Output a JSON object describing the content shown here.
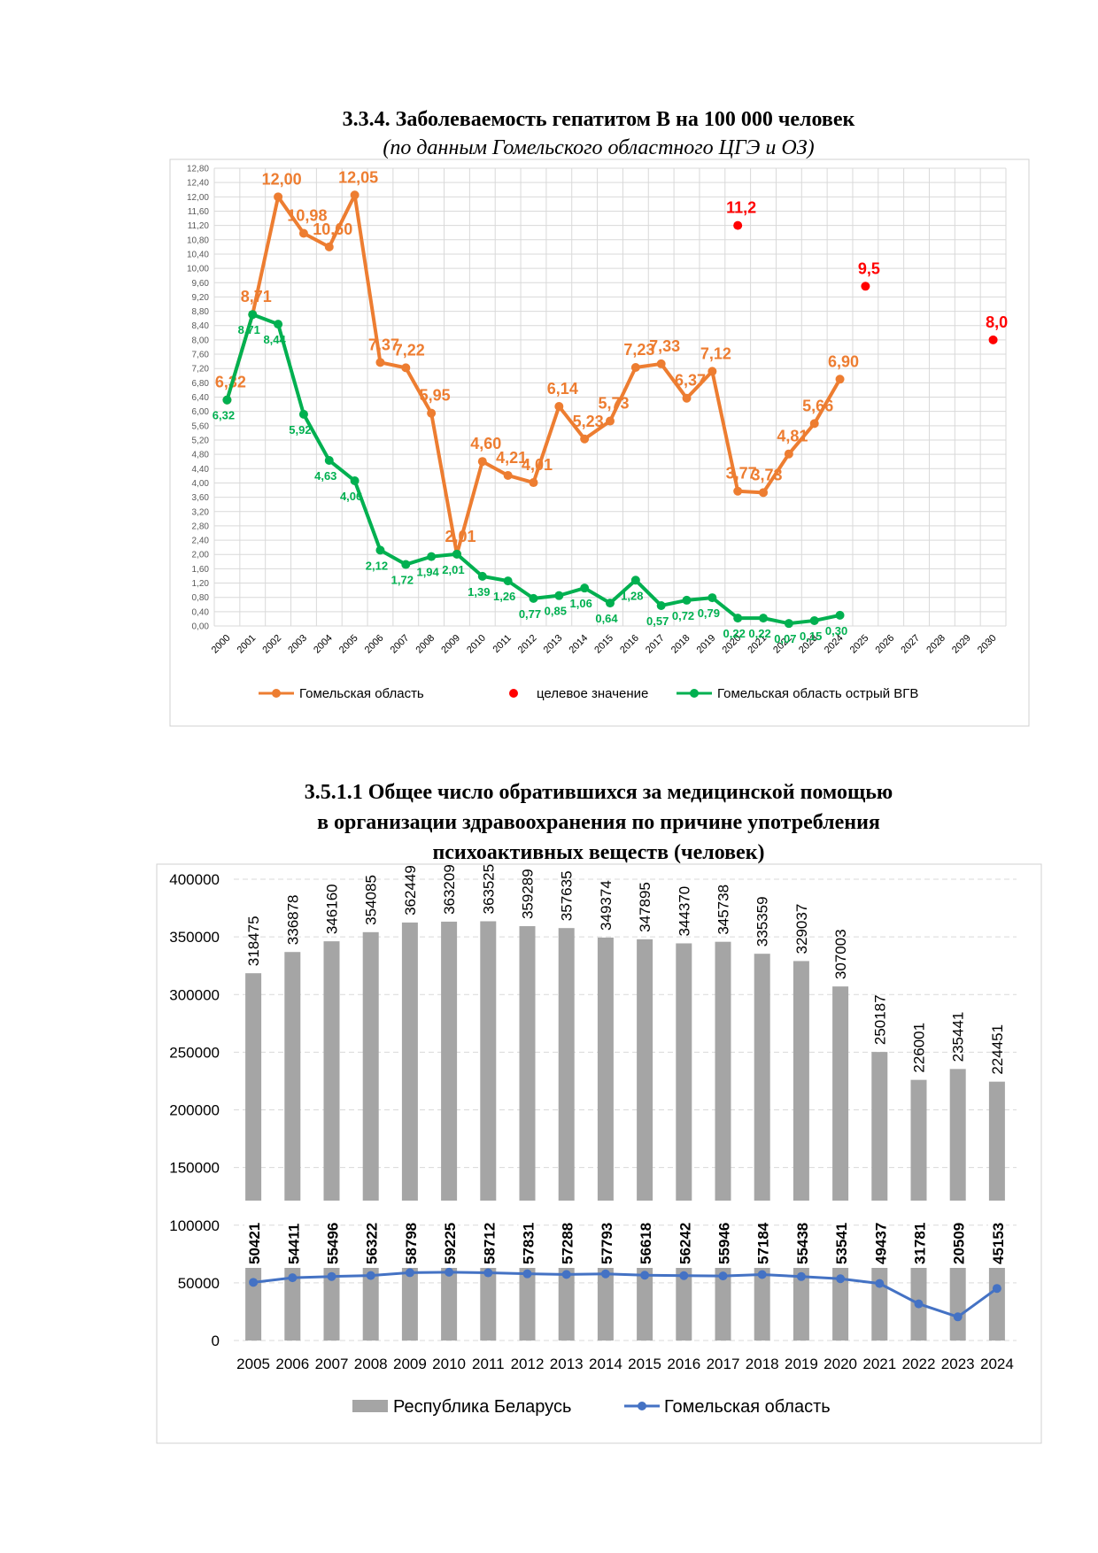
{
  "chart_data": [
    {
      "type": "line",
      "title": "3.3.4. Заболеваемость гепатитом В на 100 000 человек",
      "subtitle": "(по данным Гомельского областного ЦГЭ и ОЗ)",
      "categories": [
        "2000",
        "2001",
        "2002",
        "2003",
        "2004",
        "2005",
        "2006",
        "2007",
        "2008",
        "2009",
        "2010",
        "2011",
        "2012",
        "2013",
        "2014",
        "2015",
        "2016",
        "2017",
        "2018",
        "2019",
        "2020",
        "2021",
        "2022",
        "2023",
        "2024",
        "2025",
        "2026",
        "2027",
        "2028",
        "2029",
        "2030"
      ],
      "ylim": [
        0,
        12.8
      ],
      "yticks": [
        {
          "value": 0,
          "label": "0,00"
        },
        {
          "value": 0.4,
          "label": "0,40"
        },
        {
          "value": 0.8,
          "label": "0,80"
        },
        {
          "value": 1.2,
          "label": "1,20"
        },
        {
          "value": 1.6,
          "label": "1,60"
        },
        {
          "value": 2,
          "label": "2,00"
        },
        {
          "value": 2.4,
          "label": "2,40"
        },
        {
          "value": 2.8,
          "label": "2,80"
        },
        {
          "value": 3.2,
          "label": "3,20"
        },
        {
          "value": 3.6,
          "label": "3,60"
        },
        {
          "value": 4,
          "label": "4,00"
        },
        {
          "value": 4.4,
          "label": "4,40"
        },
        {
          "value": 4.8,
          "label": "4,80"
        },
        {
          "value": 5.2,
          "label": "5,20"
        },
        {
          "value": 5.6,
          "label": "5,60"
        },
        {
          "value": 6,
          "label": "6,00"
        },
        {
          "value": 6.4,
          "label": "6,40"
        },
        {
          "value": 6.8,
          "label": "6,80"
        },
        {
          "value": 7.2,
          "label": "7,20"
        },
        {
          "value": 7.6,
          "label": "7,60"
        },
        {
          "value": 8,
          "label": "8,00"
        },
        {
          "value": 8.4,
          "label": "8,40"
        },
        {
          "value": 8.8,
          "label": "8,80"
        },
        {
          "value": 9.2,
          "label": "9,20"
        },
        {
          "value": 9.6,
          "label": "9,60"
        },
        {
          "value": 10,
          "label": "10,00"
        },
        {
          "value": 10.4,
          "label": "10,40"
        },
        {
          "value": 10.8,
          "label": "10,80"
        },
        {
          "value": 11.2,
          "label": "11,20"
        },
        {
          "value": 11.6,
          "label": "11,60"
        },
        {
          "value": 12,
          "label": "12,00"
        },
        {
          "value": 12.4,
          "label": "12,40"
        },
        {
          "value": 12.8,
          "label": "12,80"
        }
      ],
      "grid": true,
      "series": [
        {
          "name": "Гомельская область",
          "color": "#ed7d31",
          "values": [
            6.32,
            8.71,
            12.0,
            10.98,
            10.6,
            12.05,
            7.37,
            7.22,
            5.95,
            2.01,
            4.6,
            4.21,
            4.01,
            6.14,
            5.23,
            5.73,
            7.23,
            7.33,
            6.37,
            7.12,
            3.77,
            3.73,
            4.81,
            5.66,
            6.9,
            null,
            null,
            null,
            null,
            null,
            null
          ],
          "value_labels": [
            "6,32",
            "8,71",
            "12,00",
            "10,98",
            "10,60",
            "12,05",
            "7,37",
            "7,22",
            "5,95",
            "2,01",
            "4,60",
            "4,21",
            "4,01",
            "6,14",
            "5,23",
            "5,73",
            "7,23",
            "7,33",
            "6,37",
            "7,12",
            "3,77",
            "3,73",
            "4,81",
            "5,66",
            "6,90",
            null,
            null,
            null,
            null,
            null,
            null
          ]
        },
        {
          "name": "целевое значение",
          "color": "#ff0000",
          "markers_only": true,
          "values": [
            null,
            null,
            null,
            null,
            null,
            null,
            null,
            null,
            null,
            null,
            null,
            null,
            null,
            null,
            null,
            null,
            null,
            null,
            null,
            null,
            11.2,
            null,
            null,
            null,
            null,
            9.5,
            null,
            null,
            null,
            null,
            8.0
          ],
          "value_labels": [
            null,
            null,
            null,
            null,
            null,
            null,
            null,
            null,
            null,
            null,
            null,
            null,
            null,
            null,
            null,
            null,
            null,
            null,
            null,
            null,
            "11,2",
            null,
            null,
            null,
            null,
            "9,5",
            null,
            null,
            null,
            null,
            "8,0"
          ]
        },
        {
          "name": "Гомельская область острый ВГВ",
          "color": "#00b050",
          "values": [
            6.32,
            8.71,
            8.44,
            5.92,
            4.63,
            4.06,
            2.12,
            1.72,
            1.94,
            2.01,
            1.39,
            1.26,
            0.77,
            0.85,
            1.06,
            0.64,
            1.28,
            0.57,
            0.72,
            0.79,
            0.22,
            0.22,
            0.07,
            0.15,
            0.3,
            null,
            null,
            null,
            null,
            null,
            null
          ],
          "value_labels": [
            "6,32",
            "8,71",
            "8,44",
            "5,92",
            "4,63",
            "4,06",
            "2,12",
            "1,72",
            "1,94",
            "2,01",
            "1,39",
            "1,26",
            "0,77",
            "0,85",
            "1,06",
            "0,64",
            "1,28",
            "0,57",
            "0,72",
            "0,79",
            "0,22",
            "0,22",
            "0,07",
            "0,15",
            "0,30",
            null,
            null,
            null,
            null,
            null,
            null
          ]
        }
      ]
    },
    {
      "type": "bar",
      "title": [
        "3.5.1.1 Общее число обратившихся за медицинской помощью",
        "в организации здравоохранения по причине употребления",
        "психоактивных веществ (человек)"
      ],
      "categories": [
        "2005",
        "2006",
        "2007",
        "2008",
        "2009",
        "2010",
        "2011",
        "2012",
        "2013",
        "2014",
        "2015",
        "2016",
        "2017",
        "2018",
        "2019",
        "2020",
        "2021",
        "2022",
        "2023",
        "2024"
      ],
      "ylim": [
        0,
        400000
      ],
      "yticks": [
        0,
        50000,
        100000,
        150000,
        200000,
        250000,
        300000,
        350000,
        400000
      ],
      "grid": true,
      "series": [
        {
          "name": "Республика Беларусь",
          "color": "#a5a5a5",
          "type": "bar",
          "values": [
            318475,
            336878,
            346160,
            354085,
            362449,
            363209,
            363525,
            359289,
            357635,
            349374,
            347895,
            344370,
            345738,
            335359,
            329037,
            307003,
            250187,
            226001,
            235441,
            224451
          ]
        },
        {
          "name": "Гомельская область",
          "color": "#4472c4",
          "type": "line",
          "values": [
            50421,
            54411,
            55496,
            56322,
            58798,
            59225,
            58712,
            57831,
            57288,
            57793,
            56618,
            56242,
            55946,
            57184,
            55438,
            53541,
            49437,
            31781,
            20509,
            45153
          ]
        }
      ]
    }
  ]
}
